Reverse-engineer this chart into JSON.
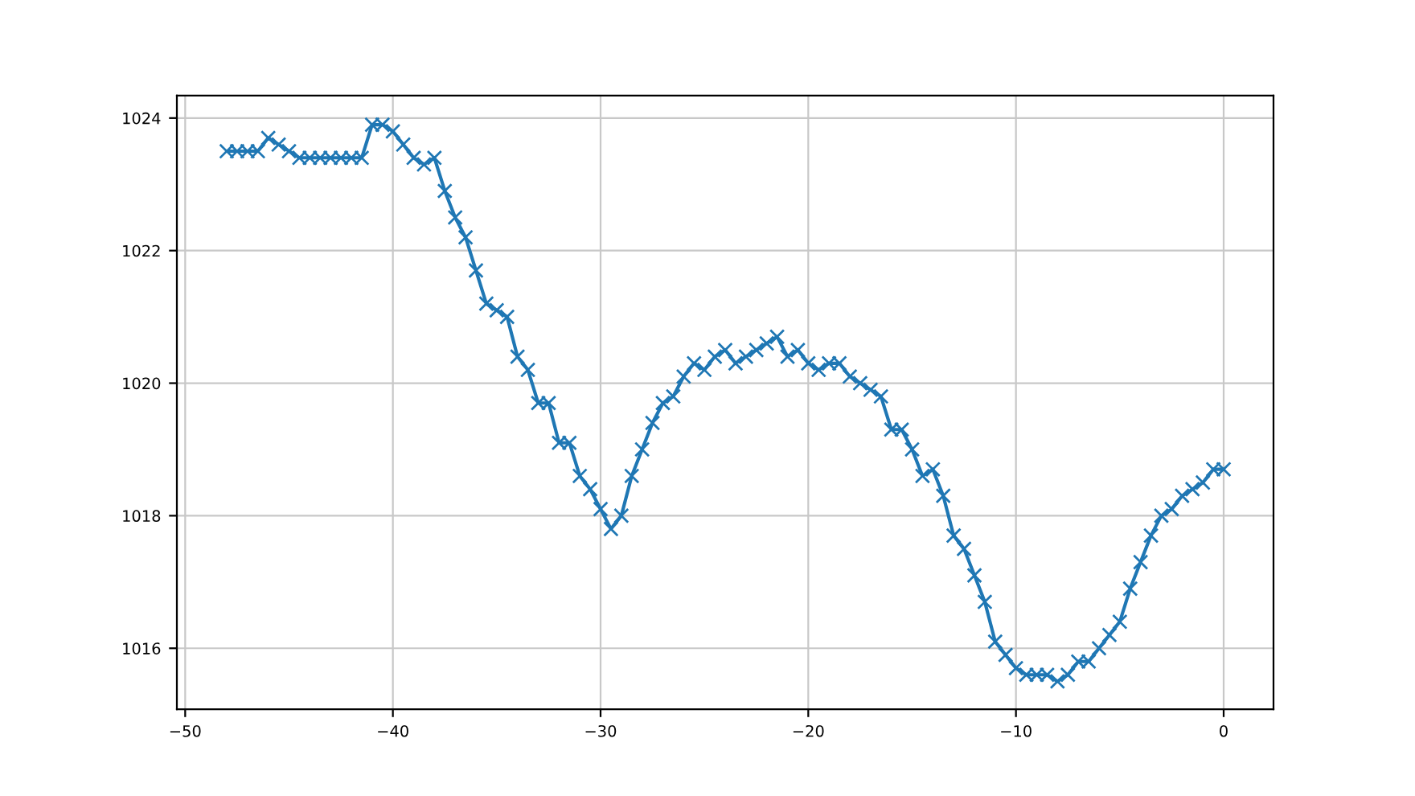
{
  "chart_data": {
    "type": "line",
    "marker": "cross",
    "grid": true,
    "x": [
      -48,
      -47.5,
      -47,
      -46.5,
      -46,
      -45.5,
      -45,
      -44.5,
      -44,
      -43.5,
      -43,
      -42.5,
      -42,
      -41.5,
      -41,
      -40.5,
      -40,
      -39.5,
      -39,
      -38.5,
      -38,
      -37.5,
      -37,
      -36.5,
      -36,
      -35.5,
      -35,
      -34.5,
      -34,
      -33.5,
      -33,
      -32.5,
      -32,
      -31.5,
      -31,
      -30.5,
      -30,
      -29.5,
      -29,
      -28.5,
      -28,
      -27.5,
      -27,
      -26.5,
      -26,
      -25.5,
      -25,
      -24.5,
      -24,
      -23.5,
      -23,
      -22.5,
      -22,
      -21.5,
      -21,
      -20.5,
      -20,
      -19.5,
      -19,
      -18.5,
      -18,
      -17.5,
      -17,
      -16.5,
      -16,
      -15.5,
      -15,
      -14.5,
      -14,
      -13.5,
      -13,
      -12.5,
      -12,
      -11.5,
      -11,
      -10.5,
      -10,
      -9.5,
      -9,
      -8.5,
      -8,
      -7.5,
      -7,
      -6.5,
      -6,
      -5.5,
      -5,
      -4.5,
      -4,
      -3.5,
      -3,
      -2.5,
      -2,
      -1.5,
      -1,
      -0.5,
      0
    ],
    "series": [
      {
        "color": "#1f77b4",
        "values": [
          1023.5,
          1023.5,
          1023.5,
          1023.5,
          1023.7,
          1023.6,
          1023.5,
          1023.4,
          1023.4,
          1023.4,
          1023.4,
          1023.4,
          1023.4,
          1023.4,
          1023.9,
          1023.9,
          1023.8,
          1023.6,
          1023.4,
          1023.3,
          1023.4,
          1022.9,
          1022.5,
          1022.2,
          1021.7,
          1021.2,
          1021.1,
          1021.0,
          1020.4,
          1020.2,
          1019.7,
          1019.7,
          1019.1,
          1019.1,
          1018.6,
          1018.4,
          1018.1,
          1017.8,
          1018.0,
          1018.6,
          1019.0,
          1019.4,
          1019.7,
          1019.8,
          1020.1,
          1020.3,
          1020.2,
          1020.4,
          1020.5,
          1020.3,
          1020.4,
          1020.5,
          1020.6,
          1020.7,
          1020.4,
          1020.5,
          1020.3,
          1020.2,
          1020.3,
          1020.3,
          1020.1,
          1020.0,
          1019.9,
          1019.8,
          1019.3,
          1019.3,
          1019.0,
          1018.6,
          1018.7,
          1018.3,
          1017.7,
          1017.5,
          1017.1,
          1016.7,
          1016.1,
          1015.9,
          1015.7,
          1015.6,
          1015.6,
          1015.6,
          1015.5,
          1015.6,
          1015.8,
          1015.8,
          1016.0,
          1016.2,
          1016.4,
          1016.9,
          1017.3,
          1017.7,
          1018.0,
          1018.1,
          1018.3,
          1018.4,
          1018.5,
          1018.7,
          1018.7
        ]
      }
    ],
    "xlim": [
      -50.4,
      2.4
    ],
    "xticks": [
      {
        "value": -50,
        "label": "−50"
      },
      {
        "value": -40,
        "label": "−40"
      },
      {
        "value": -30,
        "label": "−30"
      },
      {
        "value": -20,
        "label": "−20"
      },
      {
        "value": -10,
        "label": "−10"
      },
      0
    ],
    "ylim": [
      1015.08,
      1024.34
    ],
    "yticks": [
      1016,
      1018,
      1020,
      1022,
      1024
    ]
  }
}
